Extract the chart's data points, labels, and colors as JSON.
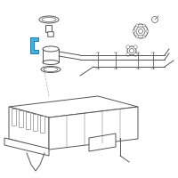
{
  "bg_color": "#ffffff",
  "line_color": "#555555",
  "highlight_color": "#1a7db5",
  "highlight_fill": "#4aafd4",
  "lw": 0.7,
  "fig_size": [
    2.0,
    2.0
  ],
  "dpi": 100
}
